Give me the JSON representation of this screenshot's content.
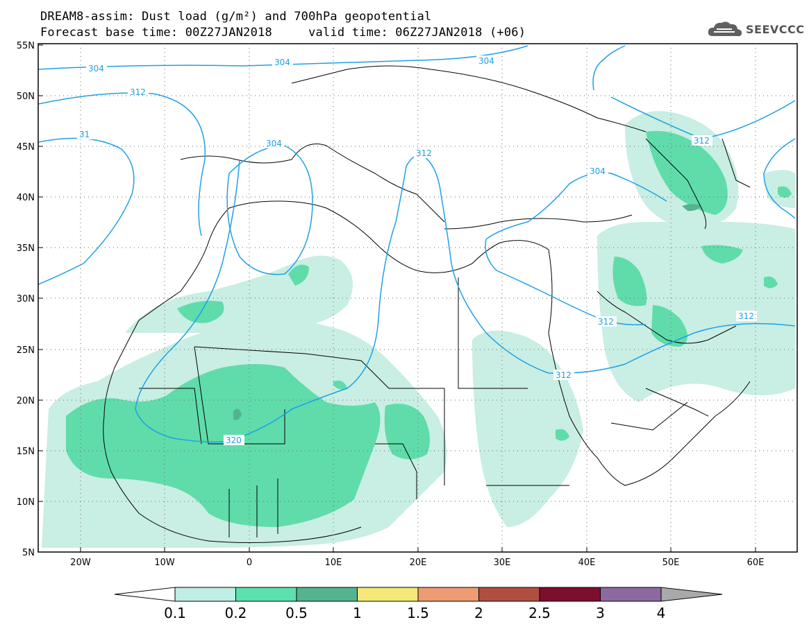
{
  "header": {
    "title_line1": "DREAM8-assim: Dust load (g/m²) and 700hPa geopotential",
    "title_line2": "Forecast base time: 00Z27JAN2018     valid time: 06Z27JAN2018 (+06)",
    "logo_text": "SEEVCCC"
  },
  "map": {
    "lat_labels": [
      "55N",
      "50N",
      "45N",
      "40N",
      "35N",
      "30N",
      "25N",
      "20N",
      "15N",
      "10N",
      "5N"
    ],
    "lon_labels": [
      "20W",
      "10W",
      "0",
      "10E",
      "20E",
      "30E",
      "40E",
      "50E",
      "60E"
    ],
    "contour_labels": [
      "304",
      "304",
      "304",
      "304",
      "304",
      "312",
      "312",
      "312",
      "312",
      "312",
      "312",
      "320",
      "31"
    ],
    "colors": {
      "contour": "#1ea0e6",
      "dust_0_1": "#c9eee3",
      "dust_0_2": "#5fdcaa",
      "dust_0_5": "#55b38f",
      "border": "#000000"
    }
  },
  "colorbar": {
    "labels": [
      "0.1",
      "0.2",
      "0.5",
      "1",
      "1.5",
      "2",
      "2.5",
      "3",
      "4"
    ],
    "colors": [
      "#c0ede4",
      "#5ce0ae",
      "#55b38f",
      "#f5e878",
      "#ec9b72",
      "#b04e42",
      "#7d0f2e",
      "#8c6aa0"
    ],
    "under_color": "#ffffff",
    "over_color": "#a9a9a9"
  }
}
